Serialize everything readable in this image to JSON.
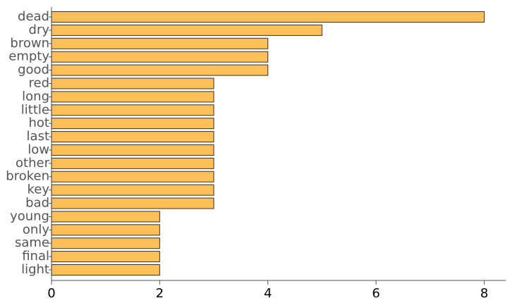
{
  "chart_data": {
    "type": "bar",
    "orientation": "horizontal",
    "categories": [
      "dead",
      "dry",
      "brown",
      "empty",
      "good",
      "red",
      "long",
      "little",
      "hot",
      "last",
      "low",
      "other",
      "broken",
      "key",
      "bad",
      "young",
      "only",
      "same",
      "final",
      "light"
    ],
    "values": [
      8,
      5,
      4,
      4,
      4,
      3,
      3,
      3,
      3,
      3,
      3,
      3,
      3,
      3,
      3,
      2,
      2,
      2,
      2,
      2
    ],
    "color": "#fdbf57",
    "xlim": [
      0,
      8.4
    ],
    "xticks": [
      0,
      2,
      4,
      6,
      8
    ]
  }
}
